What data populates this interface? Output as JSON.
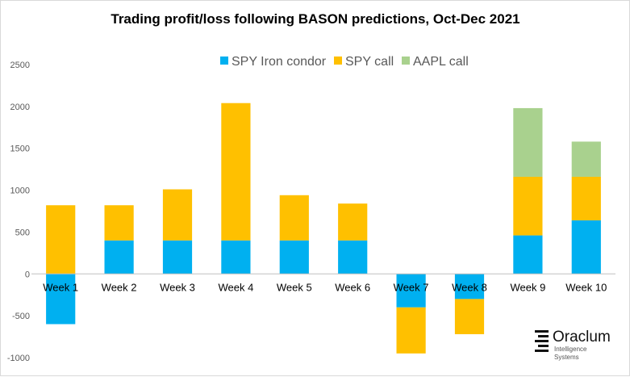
{
  "chart_data": {
    "type": "bar",
    "stacked": true,
    "title": "Trading profit/loss  following BASON predictions, Oct-Dec 2021",
    "xlabel": "",
    "ylabel": "",
    "ylim": [
      -1000,
      2500
    ],
    "yticks": [
      2500,
      2000,
      1500,
      1000,
      500,
      0,
      -500,
      -1000
    ],
    "grid": false,
    "legend_position": "top",
    "categories": [
      "Week 1",
      "Week 2",
      "Week 3",
      "Week 4",
      "Week 5",
      "Week 6",
      "Week 7",
      "Week 8",
      "Week 9",
      "Week 10"
    ],
    "series": [
      {
        "name": "SPY Iron condor",
        "color": "#00b0f0",
        "values": [
          -600,
          400,
          400,
          400,
          400,
          400,
          -400,
          -300,
          460,
          640
        ]
      },
      {
        "name": "SPY call",
        "color": "#ffc000",
        "values": [
          820,
          420,
          610,
          1640,
          540,
          440,
          -550,
          -420,
          700,
          520
        ]
      },
      {
        "name": "AAPL call",
        "color": "#a9d18e",
        "values": [
          0,
          0,
          0,
          0,
          0,
          0,
          0,
          0,
          820,
          420
        ]
      }
    ]
  },
  "logo": {
    "name": "Oraclum",
    "line1": "Intelligence",
    "line2": "Systems"
  }
}
